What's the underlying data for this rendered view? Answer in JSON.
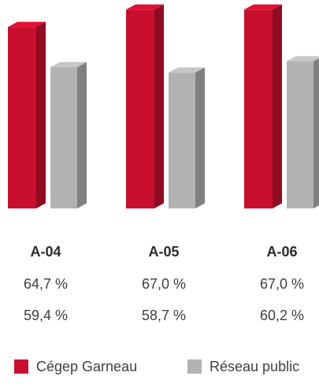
{
  "chart_data": {
    "type": "bar",
    "title": "",
    "xlabel": "",
    "ylabel": "",
    "categories": [
      "A-04",
      "A-05",
      "A-06"
    ],
    "series": [
      {
        "name": "Cégep Garneau",
        "values": [
          64.7,
          67.0,
          67.0
        ],
        "labels": [
          "64,7 %",
          "67,0 %",
          "67,0 %"
        ],
        "color": "#c8102e"
      },
      {
        "name": "Réseau public",
        "values": [
          59.4,
          58.7,
          60.2
        ],
        "labels": [
          "59,4 %",
          "58,7 %",
          "60,2 %"
        ],
        "color": "#b2b2b2"
      }
    ],
    "ylim": [
      0,
      70
    ],
    "grid": false,
    "legend_position": "bottom"
  }
}
